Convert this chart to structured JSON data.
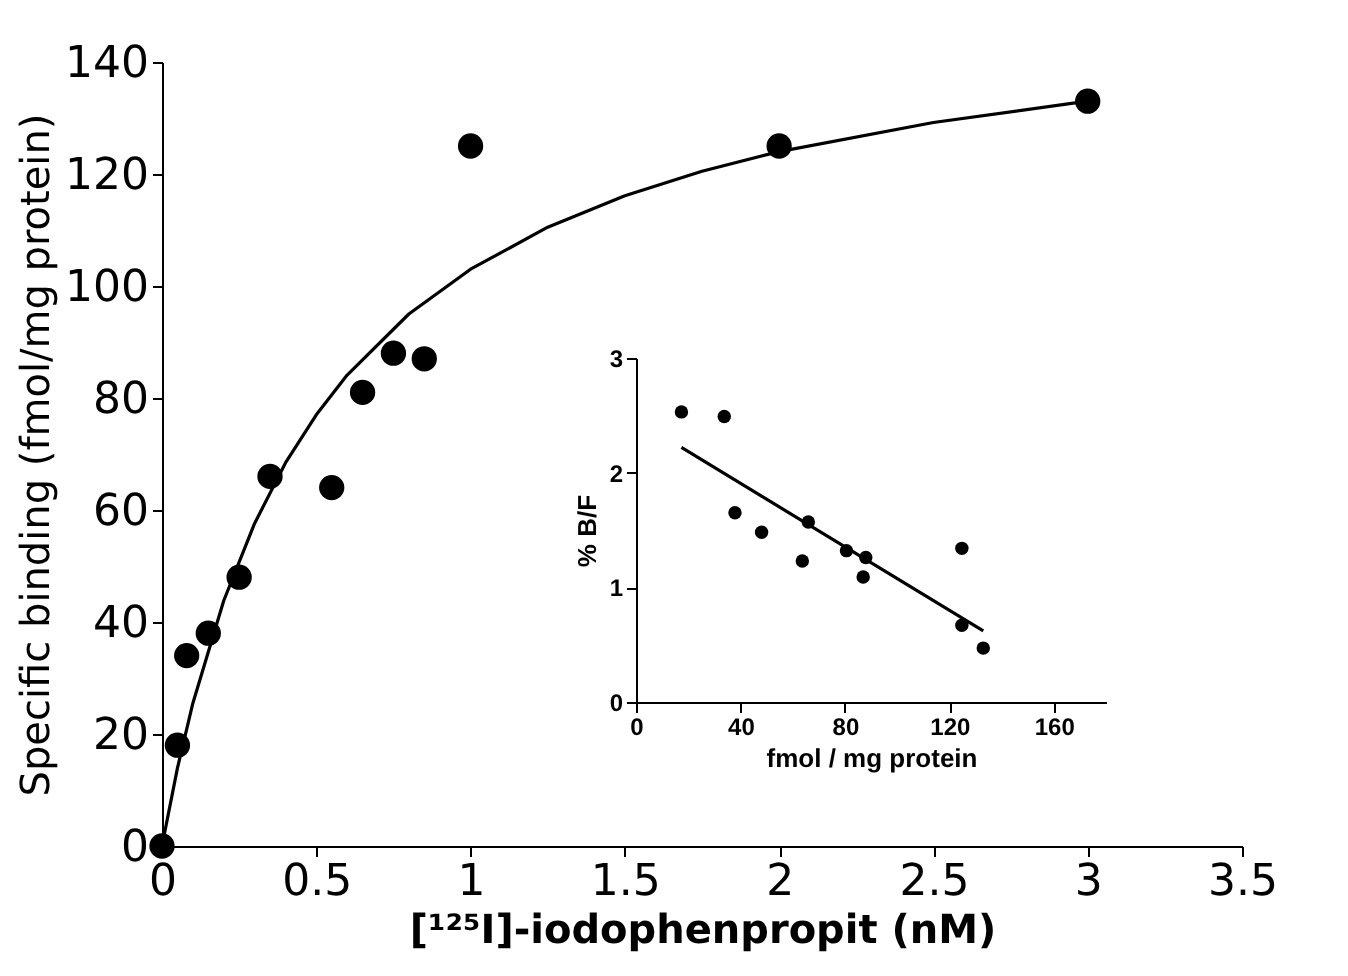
{
  "chart_data": [
    {
      "type": "scatter",
      "xlabel": "[¹²⁵I]-iodophenpropit  (nM)",
      "ylabel": "Specific binding (fmol/mg protein)",
      "xlim": [
        0,
        3.5
      ],
      "ylim": [
        0,
        140
      ],
      "xticks": [
        0,
        0.5,
        1,
        1.5,
        2,
        2.5,
        3,
        3.5
      ],
      "yticks": [
        0,
        20,
        40,
        60,
        80,
        100,
        120,
        140
      ],
      "grid": false,
      "marker": "circle",
      "series": [
        {
          "color": "#000000",
          "x": [
            0,
            0.05,
            0.08,
            0.15,
            0.25,
            0.35,
            0.55,
            0.65,
            0.75,
            0.85,
            1,
            2,
            3
          ],
          "values": [
            0,
            18,
            34,
            38,
            48,
            66,
            64,
            81,
            88,
            87,
            125,
            125,
            133
          ]
        },
        {
          "type": "line",
          "color": "#000000",
          "line_style": "solid",
          "marker": "none",
          "x": [
            0,
            0.05,
            0.1,
            0.2,
            0.3,
            0.4,
            0.5,
            0.6,
            0.8,
            1,
            1.25,
            1.5,
            1.75,
            2,
            2.5,
            3
          ],
          "values": [
            0,
            13.9,
            25.5,
            43.8,
            57.6,
            68.4,
            77.0,
            84.1,
            95.0,
            103.0,
            110.5,
            116.1,
            120.5,
            124.0,
            129.2,
            133.0
          ]
        }
      ]
    },
    {
      "type": "scatter",
      "xlabel": "fmol / mg protein",
      "ylabel": "% B/F",
      "xlim": [
        0,
        180
      ],
      "ylim": [
        0,
        3
      ],
      "xticks": [
        0,
        40,
        80,
        120,
        160
      ],
      "yticks": [
        0,
        1,
        2,
        3
      ],
      "grid": false,
      "marker": "circle",
      "series": [
        {
          "color": "#000000",
          "x": [
            17.4,
            33.8,
            37.9,
            48.1,
            63.7,
            66,
            80.6,
            88,
            87,
            124.8,
            124.8,
            133
          ],
          "values": [
            2.53,
            2.49,
            1.65,
            1.48,
            1.23,
            1.57,
            1.32,
            1.26,
            1.09,
            1.34,
            0.67,
            0.47
          ]
        },
        {
          "type": "line",
          "color": "#000000",
          "line_style": "solid",
          "marker": "none",
          "x": [
            17.4,
            133
          ],
          "values": [
            2.22,
            0.62
          ]
        }
      ]
    }
  ]
}
